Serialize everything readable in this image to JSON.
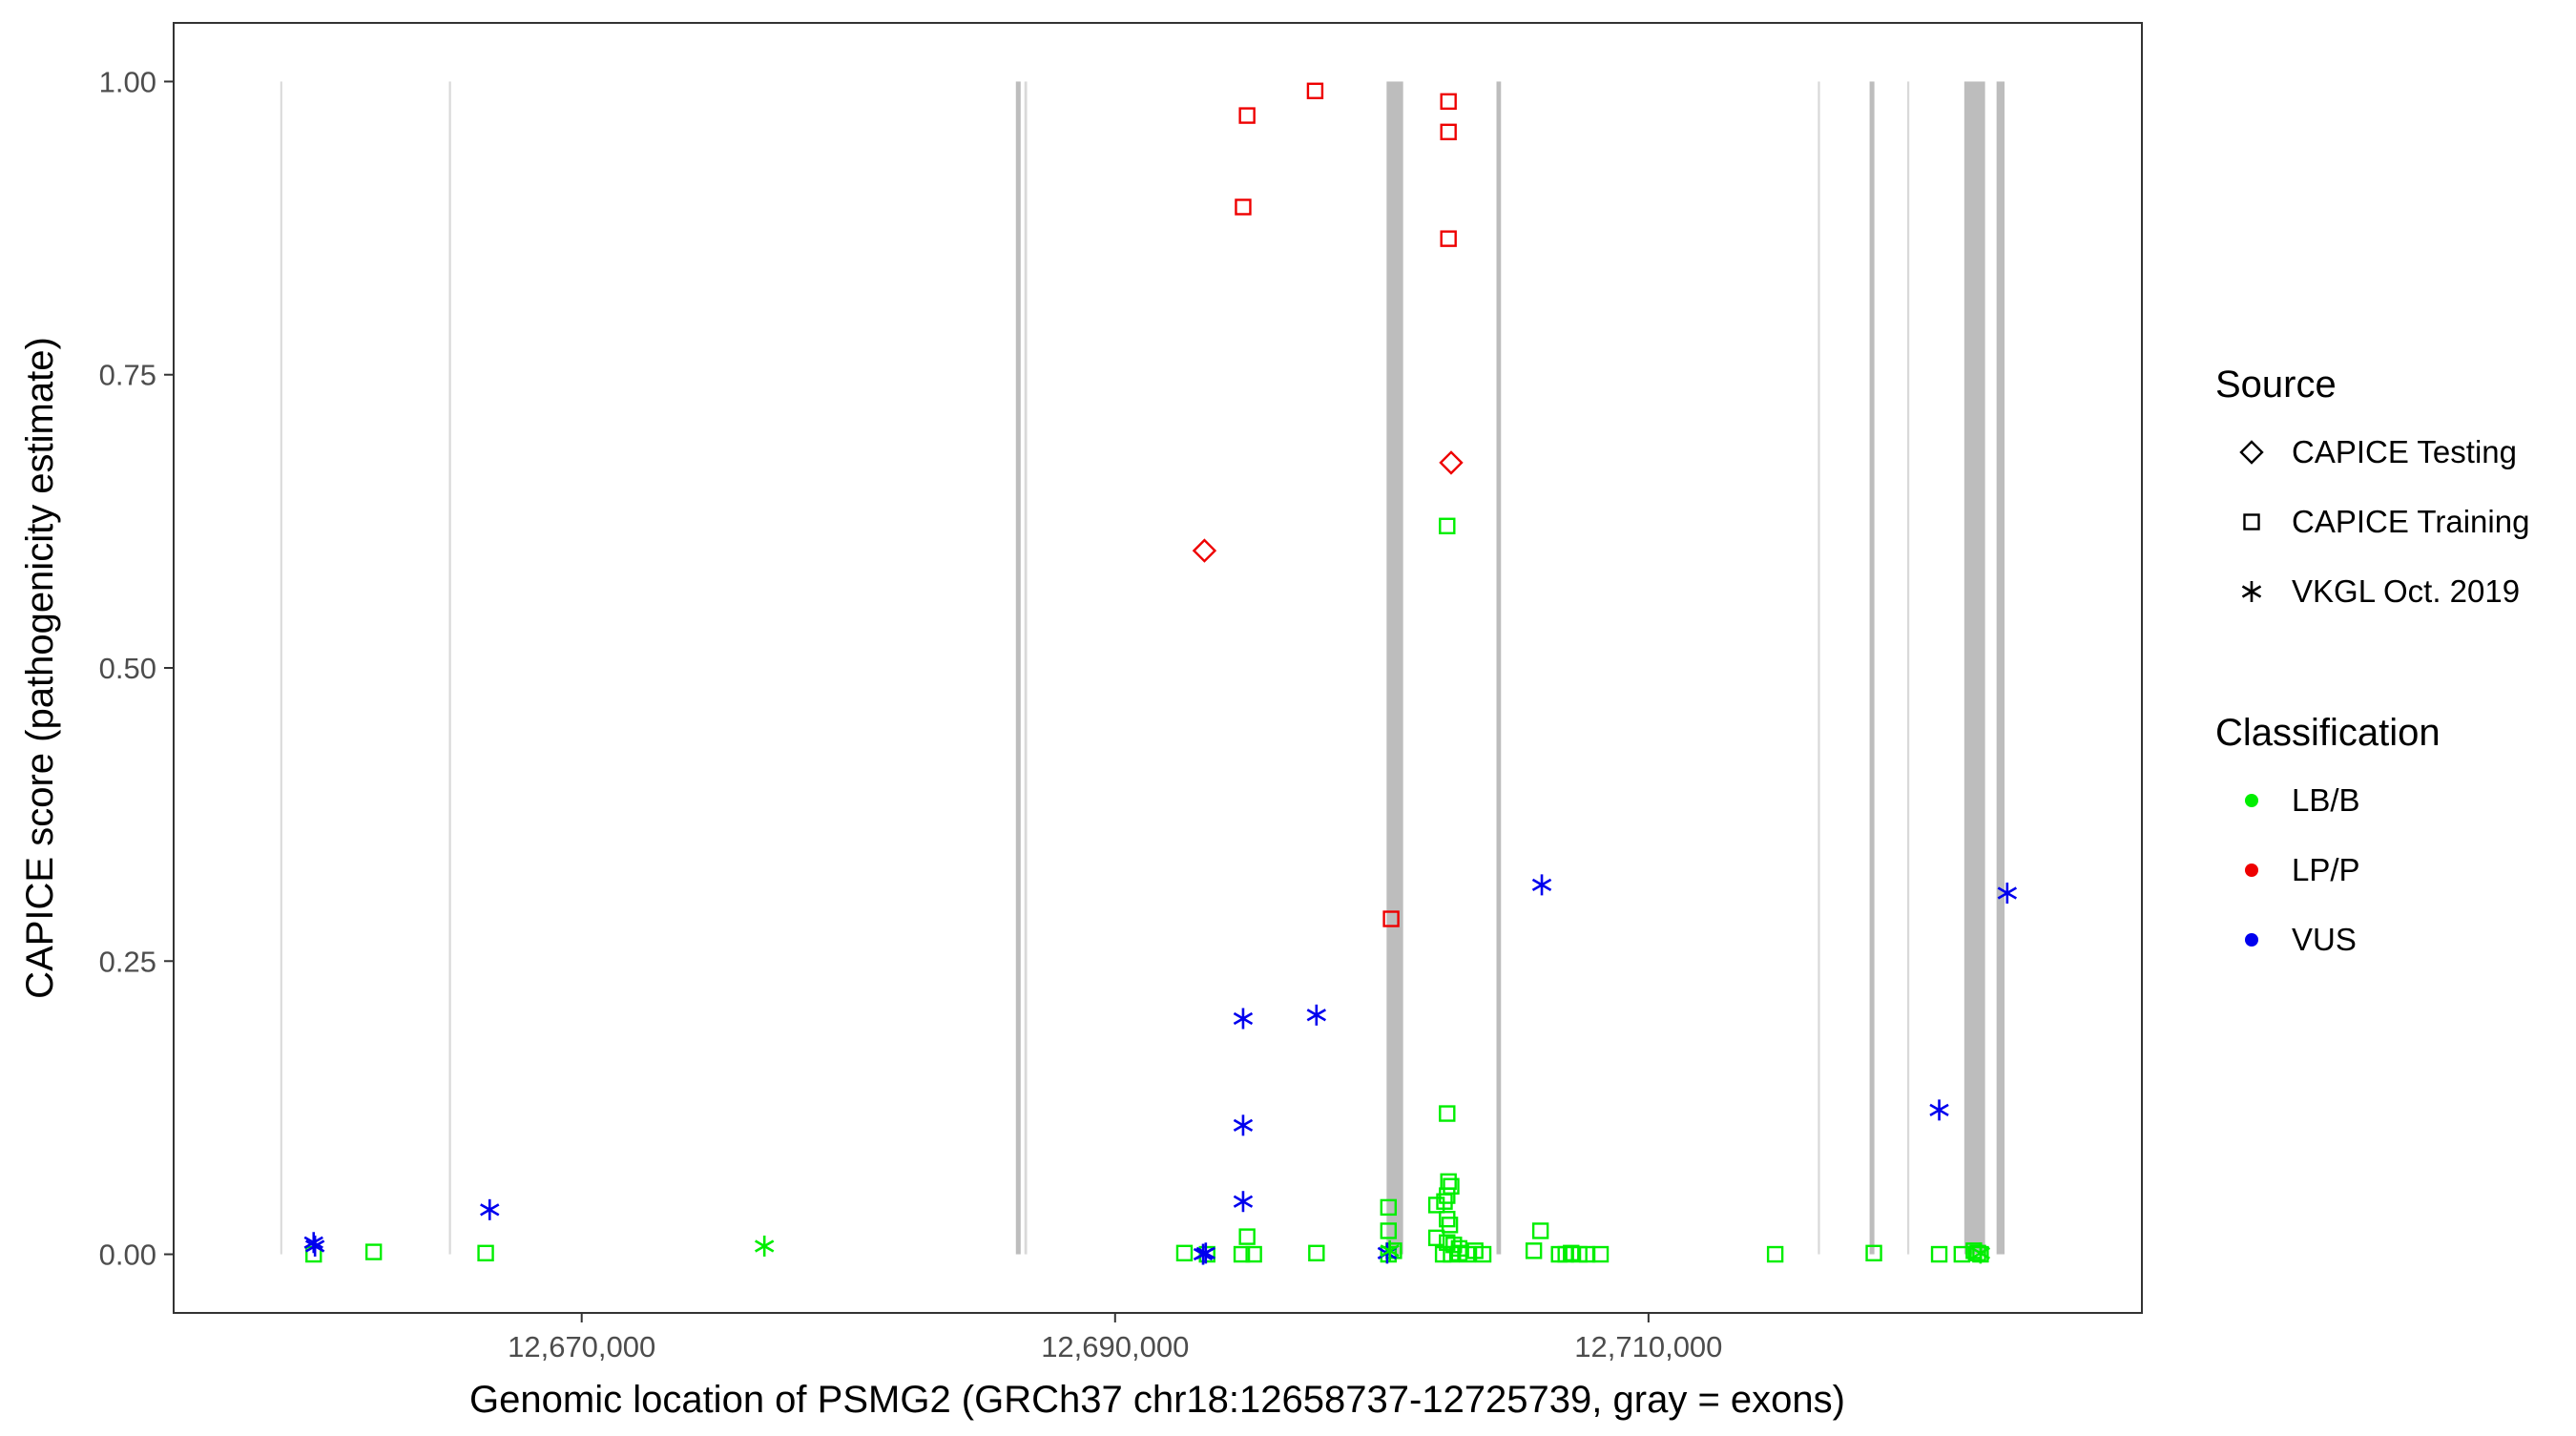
{
  "chart_data": {
    "type": "scatter",
    "xlabel": "Genomic location of PSMG2 (GRCh37 chr18:12658737-12725739, gray = exons)",
    "ylabel": "CAPICE score (pathogenicity estimate)",
    "xlim": [
      12654700,
      12728500
    ],
    "ylim": [
      -0.05,
      1.05
    ],
    "x_ticks": [
      {
        "value": 12670000,
        "label": "12,670,000"
      },
      {
        "value": 12690000,
        "label": "12,690,000"
      },
      {
        "value": 12710000,
        "label": "12,710,000"
      }
    ],
    "y_ticks": [
      {
        "value": 0.0,
        "label": "0.00"
      },
      {
        "value": 0.25,
        "label": "0.25"
      },
      {
        "value": 0.5,
        "label": "0.50"
      },
      {
        "value": 0.75,
        "label": "0.75"
      },
      {
        "value": 1.0,
        "label": "1.00"
      }
    ],
    "grid": false,
    "exons": [
      {
        "start": 12658700,
        "end": 12658770,
        "shade": "light"
      },
      {
        "start": 12665020,
        "end": 12665100,
        "shade": "light"
      },
      {
        "start": 12686280,
        "end": 12686460,
        "shade": "dark"
      },
      {
        "start": 12686600,
        "end": 12686700,
        "shade": "light"
      },
      {
        "start": 12700180,
        "end": 12700800,
        "shade": "dark"
      },
      {
        "start": 12704300,
        "end": 12704470,
        "shade": "dark"
      },
      {
        "start": 12716350,
        "end": 12716430,
        "shade": "light"
      },
      {
        "start": 12718290,
        "end": 12718470,
        "shade": "dark"
      },
      {
        "start": 12719700,
        "end": 12719780,
        "shade": "light"
      },
      {
        "start": 12721840,
        "end": 12722620,
        "shade": "dark"
      },
      {
        "start": 12723050,
        "end": 12723350,
        "shade": "dark"
      }
    ],
    "legend": {
      "placement": "right",
      "source_title": "Source",
      "source_items": [
        {
          "label": "CAPICE Testing",
          "shape": "diamond"
        },
        {
          "label": "CAPICE Training",
          "shape": "square"
        },
        {
          "label": "VKGL Oct. 2019",
          "shape": "asterisk"
        }
      ],
      "class_title": "Classification",
      "class_items": [
        {
          "label": "LB/B",
          "color": "#00ee00"
        },
        {
          "label": "LP/P",
          "color": "#ee0000"
        },
        {
          "label": "VUS",
          "color": "#0000ee"
        }
      ]
    },
    "series": [
      {
        "source": "CAPICE Testing",
        "classification": "LP/P",
        "shape": "diamond",
        "color": "#ee0000",
        "points": [
          [
            12693350,
            0.6
          ],
          [
            12702600,
            0.675
          ]
        ]
      },
      {
        "source": "CAPICE Training",
        "classification": "LP/P",
        "shape": "square",
        "color": "#ee0000",
        "points": [
          [
            12694800,
            0.893
          ],
          [
            12694950,
            0.971
          ],
          [
            12697500,
            0.992
          ],
          [
            12700350,
            0.286
          ],
          [
            12702500,
            0.983
          ],
          [
            12702500,
            0.957
          ],
          [
            12702500,
            0.866
          ]
        ]
      },
      {
        "source": "CAPICE Training",
        "classification": "LB/B",
        "shape": "square",
        "color": "#00ee00",
        "points": [
          [
            12659950,
            0.0
          ],
          [
            12662200,
            0.002
          ],
          [
            12666400,
            0.001
          ],
          [
            12692600,
            0.001
          ],
          [
            12693450,
            0.0
          ],
          [
            12694750,
            0.0
          ],
          [
            12694950,
            0.015
          ],
          [
            12695200,
            0.0
          ],
          [
            12697550,
            0.001
          ],
          [
            12700250,
            0.04
          ],
          [
            12700250,
            0.02
          ],
          [
            12700250,
            0.0
          ],
          [
            12700450,
            0.003
          ],
          [
            12702450,
            0.621
          ],
          [
            12702450,
            0.12
          ],
          [
            12702500,
            0.062
          ],
          [
            12702600,
            0.058
          ],
          [
            12702450,
            0.05
          ],
          [
            12702350,
            0.045
          ],
          [
            12702050,
            0.042
          ],
          [
            12702450,
            0.03
          ],
          [
            12702550,
            0.025
          ],
          [
            12702050,
            0.014
          ],
          [
            12702450,
            0.01
          ],
          [
            12702700,
            0.008
          ],
          [
            12702900,
            0.005
          ],
          [
            12702300,
            0.0
          ],
          [
            12702600,
            0.0
          ],
          [
            12702900,
            0.001
          ],
          [
            12703200,
            0.0
          ],
          [
            12703500,
            0.003
          ],
          [
            12703800,
            0.0
          ],
          [
            12705700,
            0.003
          ],
          [
            12705950,
            0.02
          ],
          [
            12706650,
            0.0
          ],
          [
            12706900,
            0.0
          ],
          [
            12707100,
            0.001
          ],
          [
            12707400,
            0.0
          ],
          [
            12707700,
            0.0
          ],
          [
            12708200,
            0.0
          ],
          [
            12714750,
            0.0
          ],
          [
            12718450,
            0.001
          ],
          [
            12720900,
            0.0
          ],
          [
            12721750,
            0.0
          ],
          [
            12722200,
            0.003
          ],
          [
            12722350,
            0.001
          ],
          [
            12722450,
            0.0
          ]
        ]
      },
      {
        "source": "VKGL Oct. 2019",
        "classification": "VUS",
        "shape": "asterisk",
        "color": "#0000ee",
        "points": [
          [
            12659950,
            0.01
          ],
          [
            12660000,
            0.007
          ],
          [
            12666550,
            0.038
          ],
          [
            12693300,
            0.0
          ],
          [
            12693400,
            0.001
          ],
          [
            12694800,
            0.201
          ],
          [
            12694800,
            0.11
          ],
          [
            12694800,
            0.045
          ],
          [
            12697550,
            0.204
          ],
          [
            12700200,
            0.001
          ],
          [
            12706000,
            0.315
          ],
          [
            12720900,
            0.123
          ],
          [
            12723450,
            0.308
          ]
        ]
      },
      {
        "source": "VKGL Oct. 2019",
        "classification": "LB/B",
        "shape": "asterisk",
        "color": "#00ee00",
        "points": [
          [
            12676850,
            0.007
          ],
          [
            12700300,
            0.003
          ],
          [
            12722450,
            0.001
          ]
        ]
      }
    ]
  }
}
